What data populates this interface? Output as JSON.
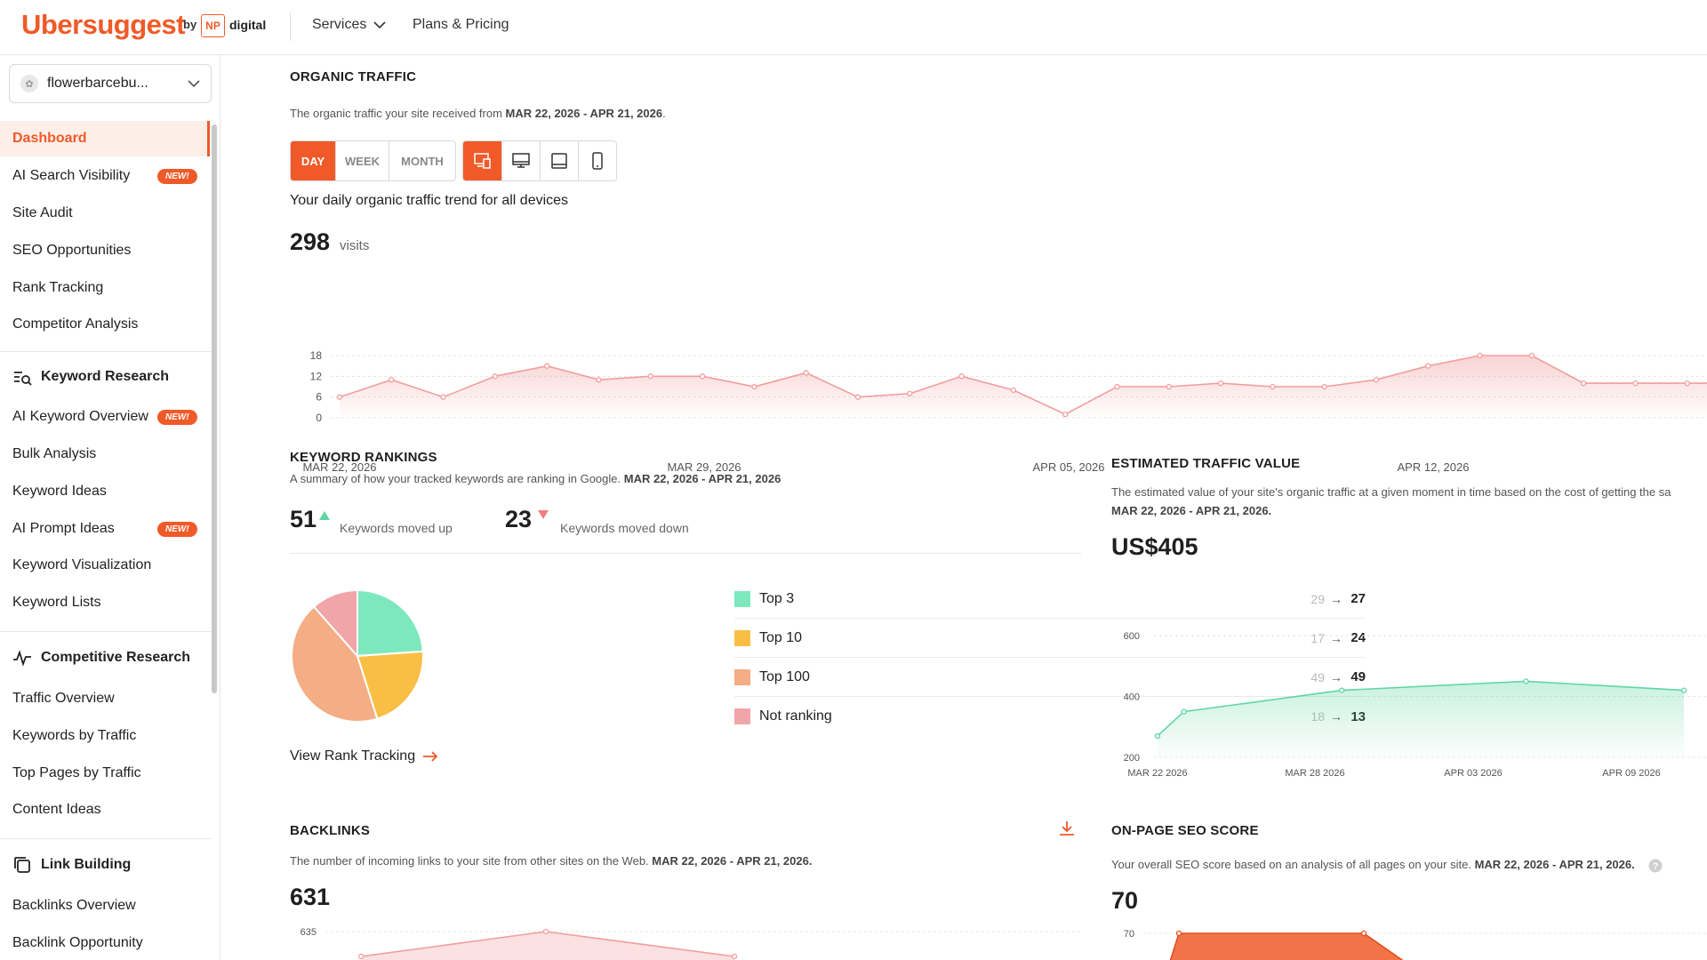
{
  "header": {
    "logo": "Ubersuggest",
    "by": "by",
    "np": "NP",
    "digital": "digital",
    "nav": [
      {
        "label": "Services"
      },
      {
        "label": "Plans & Pricing"
      }
    ]
  },
  "sidebar": {
    "site": "flowerbarcebu...",
    "items": [
      {
        "label": "Dashboard"
      },
      {
        "label": "AI Search Visibility",
        "badge": "NEW!"
      },
      {
        "label": "Site Audit"
      },
      {
        "label": "SEO Opportunities"
      },
      {
        "label": "Rank Tracking"
      },
      {
        "label": "Competitor Analysis"
      }
    ],
    "sections": [
      {
        "title": "Keyword Research",
        "icon": "keyword-search-icon",
        "items": [
          {
            "label": "AI Keyword Overview",
            "badge": "NEW!"
          },
          {
            "label": "Bulk Analysis"
          },
          {
            "label": "Keyword Ideas"
          },
          {
            "label": "AI Prompt Ideas",
            "badge": "NEW!"
          },
          {
            "label": "Keyword Visualization"
          },
          {
            "label": "Keyword Lists"
          }
        ]
      },
      {
        "title": "Competitive Research",
        "icon": "pulse-icon",
        "items": [
          {
            "label": "Traffic Overview"
          },
          {
            "label": "Keywords by Traffic"
          },
          {
            "label": "Top Pages by Traffic"
          },
          {
            "label": "Content Ideas"
          }
        ]
      },
      {
        "title": "Link Building",
        "icon": "link-copy-icon",
        "items": [
          {
            "label": "Backlinks Overview"
          },
          {
            "label": "Backlink Opportunity"
          }
        ]
      }
    ]
  },
  "organic": {
    "title": "ORGANIC TRAFFIC",
    "desc": "The organic traffic your site received from",
    "range": "MAR 22, 2026 - APR 21, 2026",
    "period_tabs": [
      "DAY",
      "WEEK",
      "MONTH"
    ],
    "subtitle": "Your daily organic traffic trend for all devices",
    "visits": "298",
    "visits_unit": "visits"
  },
  "rankings": {
    "title": "KEYWORD RANKINGS",
    "desc": "A summary of how your tracked keywords are ranking in Google.",
    "range": "MAR 22, 2026 - APR 21, 2026",
    "up_count": "51",
    "up_label": "Keywords moved up",
    "down_count": "23",
    "down_label": "Keywords moved down",
    "rows": [
      {
        "name": "Top 3",
        "from": "29",
        "to": "27",
        "color": "#7ee8bd"
      },
      {
        "name": "Top 10",
        "from": "17",
        "to": "24",
        "color": "#f9bf45"
      },
      {
        "name": "Top 100",
        "from": "49",
        "to": "49",
        "color": "#f4ad84"
      },
      {
        "name": "Not ranking",
        "from": "18",
        "to": "13",
        "color": "#f1a5a8"
      }
    ],
    "arrow": "→",
    "link": "View Rank Tracking"
  },
  "value": {
    "title": "ESTIMATED TRAFFIC VALUE",
    "desc": "The estimated value of your site's organic traffic at a given moment in time based on the cost of getting the sa",
    "range": "MAR 22, 2026 - APR 21, 2026.",
    "amount": "US$405"
  },
  "backlinks": {
    "title": "BACKLINKS",
    "desc": "The number of incoming links to your site from other sites on the Web.",
    "range": "MAR 22, 2026 - APR 21, 2026.",
    "count": "631",
    "tick": "635"
  },
  "onpage": {
    "title": "ON-PAGE SEO SCORE",
    "desc": "Your overall SEO score based on an analysis of all pages on your site.",
    "range": "MAR 22, 2026 - APR 21, 2026.",
    "score": "70",
    "tick": "70"
  },
  "chart_data": [
    {
      "type": "area",
      "name": "organic-traffic",
      "x_labels": [
        "MAR 22, 2026",
        "MAR 29, 2026",
        "APR 05, 2026",
        "APR 12, 2026"
      ],
      "yticks": [
        0,
        6,
        12,
        18
      ],
      "ylim": [
        0,
        18
      ],
      "values": [
        6,
        11,
        6,
        12,
        15,
        11,
        12,
        12,
        9,
        13,
        6,
        7,
        12,
        8,
        1,
        9,
        9,
        10,
        9,
        9,
        11,
        15,
        18,
        18,
        10,
        10,
        10,
        10
      ],
      "color": "#f29d9d"
    },
    {
      "type": "pie",
      "name": "keyword-rankings",
      "labels": [
        "Top 3",
        "Top 10",
        "Top 100",
        "Not ranking"
      ],
      "values": [
        27,
        24,
        49,
        13
      ],
      "colors": [
        "#7ee8bd",
        "#f9bf45",
        "#f4ad84",
        "#f1a5a8"
      ]
    },
    {
      "type": "area",
      "name": "estimated-traffic-value",
      "x_labels": [
        "MAR 22 2026",
        "MAR 28 2026",
        "APR 03 2026",
        "APR 09 2026"
      ],
      "yticks": [
        200,
        400,
        600
      ],
      "ylim": [
        200,
        600
      ],
      "x": [
        0,
        1,
        7,
        14,
        20
      ],
      "values": [
        270,
        350,
        420,
        450,
        420
      ],
      "color": "#5fd6a3"
    },
    {
      "type": "area",
      "name": "backlinks",
      "yticks": [
        635
      ],
      "values": [
        628,
        635,
        628
      ],
      "color": "#f29d9d"
    },
    {
      "type": "area",
      "name": "on-page-seo-score",
      "yticks": [
        70
      ],
      "values": [
        62,
        70,
        70,
        62
      ],
      "color": "#f05a28"
    }
  ]
}
